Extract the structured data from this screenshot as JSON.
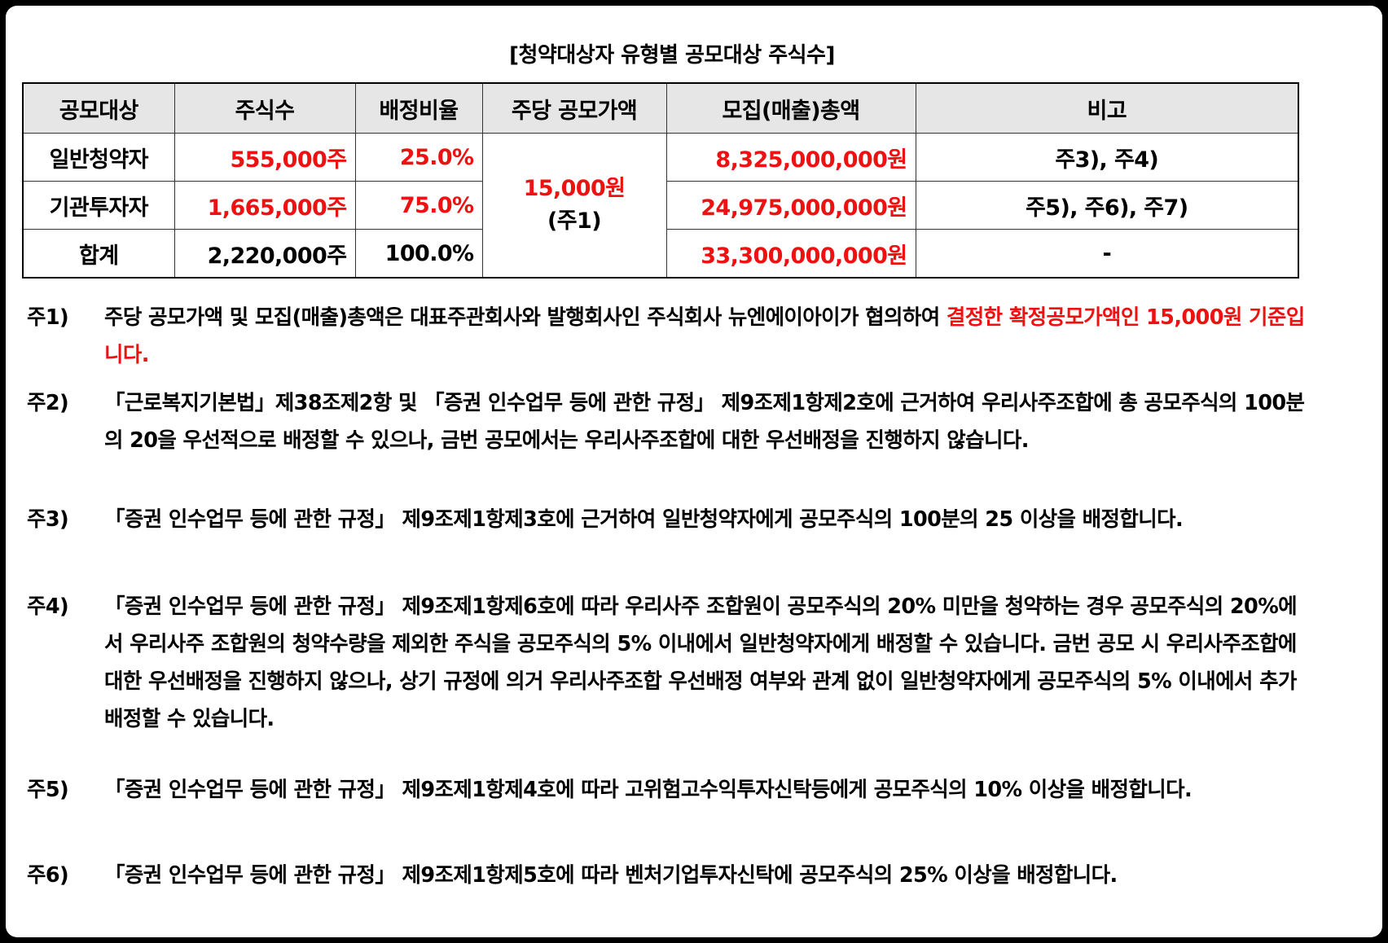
{
  "title": "[청약대상자 유형별 공모대상 주식수]",
  "table": {
    "headers": [
      "공모대상",
      "주식수",
      "배정비율",
      "주당 공모가액",
      "모집(매출)총액",
      "비고"
    ],
    "rows": [
      {
        "target": "일반청약자",
        "shares": "555,000주",
        "ratio": "25.0%",
        "total": "8,325,000,000원",
        "remark": "주3), 주4)"
      },
      {
        "target": "기관투자자",
        "shares": "1,665,000주",
        "ratio": "75.0%",
        "total": "24,975,000,000원",
        "remark": "주5), 주6), 주7)"
      },
      {
        "target": "합계",
        "shares": "2,220,000주",
        "ratio": "100.0%",
        "total": "33,300,000,000원",
        "remark": "-"
      }
    ],
    "price": "15,000원",
    "price_note": "(주1)",
    "accent_color": "#ee1111"
  },
  "notes": [
    {
      "label": "주1)",
      "text": "주당 공모가액 및 모집(매출)총액은 대표주관회사와 발행회사인 주식회사 뉴엔에이아이가 협의하여 ",
      "highlight": "결정한 확정공모가액인 15,000원 기준입니다."
    },
    {
      "label": "주2)",
      "text": "「근로복지기본법」제38조제2항 및 「증권 인수업무 등에 관한 규정」 제9조제1항제2호에 근거하여 우리사주조합에 총 공모주식의 100분의 20을 우선적으로 배정할 수 있으나, 금번 공모에서는 우리사주조합에 대한 우선배정을 진행하지 않습니다."
    },
    {
      "label": "주3)",
      "text": "「증권 인수업무 등에 관한 규정」 제9조제1항제3호에 근거하여 일반청약자에게 공모주식의 100분의 25 이상을 배정합니다."
    },
    {
      "label": "주4)",
      "text": "「증권 인수업무 등에 관한 규정」 제9조제1항제6호에 따라 우리사주 조합원이 공모주식의 20% 미만을 청약하는 경우 공모주식의 20%에서 우리사주 조합원의 청약수량을 제외한 주식을 공모주식의 5% 이내에서 일반청약자에게 배정할 수 있습니다. 금번 공모 시 우리사주조합에 대한 우선배정을 진행하지 않으나, 상기 규정에 의거 우리사주조합 우선배정 여부와 관계 없이 일반청약자에게 공모주식의 5% 이내에서 추가 배정할 수 있습니다."
    },
    {
      "label": "주5)",
      "text": "「증권 인수업무 등에 관한 규정」 제9조제1항제4호에 따라 고위험고수익투자신탁등에게 공모주식의 10% 이상을 배정합니다."
    },
    {
      "label": "주6)",
      "text": "「증권 인수업무 등에 관한 규정」 제9조제1항제5호에 따라 벤처기업투자신탁에 공모주식의 25% 이상을 배정합니다."
    }
  ]
}
